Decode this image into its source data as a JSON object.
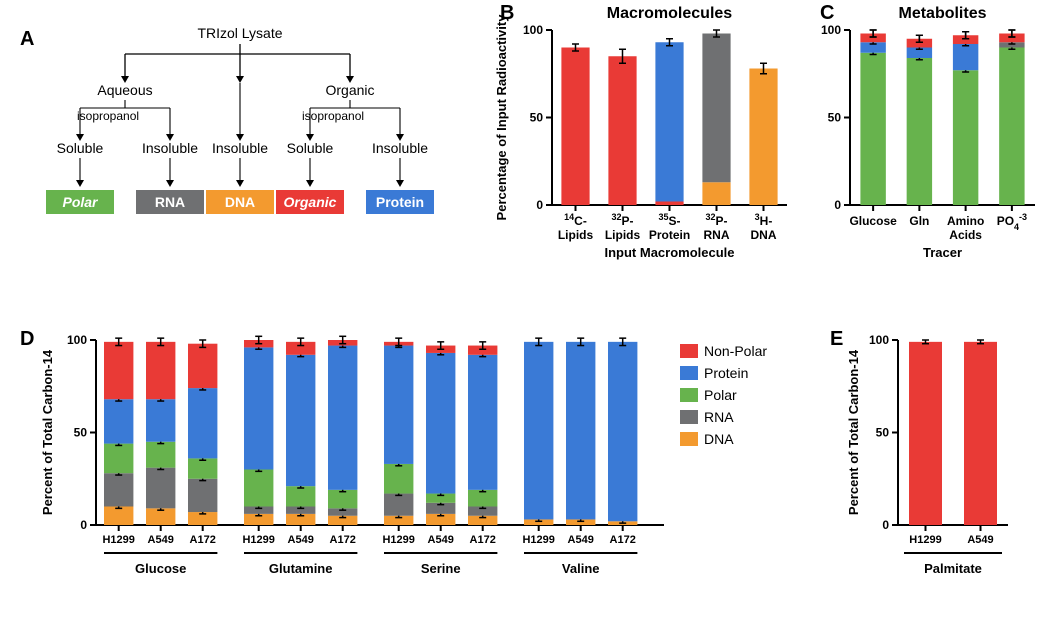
{
  "colors": {
    "nonpolar": "#e93a36",
    "protein": "#3a7ad6",
    "polar": "#67b34d",
    "rna": "#6f7072",
    "dna": "#f39a2f",
    "axis": "#000000",
    "text": "#000000",
    "err": "#000000"
  },
  "panelA": {
    "label": "A",
    "root": "TRIzol Lysate",
    "mid": [
      {
        "label": "Aqueous"
      },
      {
        "label": "Organic"
      }
    ],
    "smallL": "isopropanol",
    "smallR": "isopropanol",
    "leaves": [
      {
        "label": "Soluble"
      },
      {
        "label": "Insoluble"
      },
      {
        "label": "Insoluble"
      },
      {
        "label": "Soluble"
      },
      {
        "label": "Insoluble"
      }
    ],
    "boxes": [
      {
        "label": "Polar",
        "color": "polar",
        "italic": true
      },
      {
        "label": "RNA",
        "color": "rna",
        "italic": false
      },
      {
        "label": "DNA",
        "color": "dna",
        "italic": false
      },
      {
        "label": "Organic",
        "color": "nonpolar",
        "italic": true
      },
      {
        "label": "Protein",
        "color": "protein",
        "italic": false
      }
    ]
  },
  "panelB": {
    "label": "B",
    "title": "Macromolecules",
    "ytitle": "Percentage of Input Radioactivity",
    "xtitle": "Input Macromolecule",
    "ylim": [
      0,
      100
    ],
    "yticks": [
      0,
      50,
      100
    ],
    "bar_width": 0.6,
    "bars": [
      {
        "xlab": "<tspan font-size='9' baseline-shift='super'>14</tspan>C-\nLipids",
        "stack": [
          {
            "c": "nonpolar",
            "v": 90
          }
        ],
        "err": 2
      },
      {
        "xlab": "<tspan font-size='9' baseline-shift='super'>32</tspan>P-\nLipids",
        "stack": [
          {
            "c": "nonpolar",
            "v": 85
          }
        ],
        "err": 4
      },
      {
        "xlab": "<tspan font-size='9' baseline-shift='super'>35</tspan>S-\nProtein",
        "stack": [
          {
            "c": "nonpolar",
            "v": 2
          },
          {
            "c": "protein",
            "v": 91
          }
        ],
        "err": 2
      },
      {
        "xlab": "<tspan font-size='9' baseline-shift='super'>32</tspan>P-\nRNA",
        "stack": [
          {
            "c": "dna",
            "v": 13
          },
          {
            "c": "rna",
            "v": 85
          }
        ],
        "err": 2
      },
      {
        "xlab": "<tspan font-size='9' baseline-shift='super'>3</tspan>H-\nDNA",
        "stack": [
          {
            "c": "dna",
            "v": 78
          }
        ],
        "err": 3
      }
    ]
  },
  "panelC": {
    "label": "C",
    "title": "Metabolites",
    "xtitle": "Tracer",
    "ylim": [
      0,
      100
    ],
    "yticks": [
      0,
      50,
      100
    ],
    "bar_width": 0.55,
    "bars": [
      {
        "xlab": "Glucose",
        "stack": [
          {
            "c": "polar",
            "v": 87
          },
          {
            "c": "protein",
            "v": 6
          },
          {
            "c": "nonpolar",
            "v": 5
          }
        ],
        "err": 2
      },
      {
        "xlab": "Gln",
        "stack": [
          {
            "c": "polar",
            "v": 84
          },
          {
            "c": "protein",
            "v": 6
          },
          {
            "c": "nonpolar",
            "v": 5
          }
        ],
        "err": 2
      },
      {
        "xlab": "Amino\nAcids",
        "stack": [
          {
            "c": "polar",
            "v": 77
          },
          {
            "c": "protein",
            "v": 15
          },
          {
            "c": "nonpolar",
            "v": 5
          }
        ],
        "err": 2
      },
      {
        "xlab": "PO<tspan font-size='9' baseline-shift='sub'>4</tspan><tspan font-size='9' baseline-shift='super'>-3</tspan>",
        "stack": [
          {
            "c": "polar",
            "v": 90
          },
          {
            "c": "rna",
            "v": 3
          },
          {
            "c": "nonpolar",
            "v": 5
          }
        ],
        "err": 2
      }
    ]
  },
  "legendD": {
    "items": [
      {
        "c": "nonpolar",
        "label": "Non-Polar"
      },
      {
        "c": "protein",
        "label": "Protein"
      },
      {
        "c": "polar",
        "label": "Polar"
      },
      {
        "c": "rna",
        "label": "RNA"
      },
      {
        "c": "dna",
        "label": "DNA"
      }
    ]
  },
  "panelD": {
    "label": "D",
    "ytitle": "Percent of Total Carbon-14",
    "ylim": [
      0,
      100
    ],
    "yticks": [
      0,
      50,
      100
    ],
    "bar_width": 0.7,
    "groups": [
      {
        "group": "Glucose",
        "cells": [
          "H1299",
          "A549",
          "A172"
        ],
        "stacks": [
          [
            {
              "c": "dna",
              "v": 10
            },
            {
              "c": "rna",
              "v": 18
            },
            {
              "c": "polar",
              "v": 16
            },
            {
              "c": "protein",
              "v": 24
            },
            {
              "c": "nonpolar",
              "v": 31
            }
          ],
          [
            {
              "c": "dna",
              "v": 9
            },
            {
              "c": "rna",
              "v": 22
            },
            {
              "c": "polar",
              "v": 14
            },
            {
              "c": "protein",
              "v": 23
            },
            {
              "c": "nonpolar",
              "v": 31
            }
          ],
          [
            {
              "c": "dna",
              "v": 7
            },
            {
              "c": "rna",
              "v": 18
            },
            {
              "c": "polar",
              "v": 11
            },
            {
              "c": "protein",
              "v": 38
            },
            {
              "c": "nonpolar",
              "v": 24
            }
          ]
        ]
      },
      {
        "group": "Glutamine",
        "cells": [
          "H1299",
          "A549",
          "A172"
        ],
        "stacks": [
          [
            {
              "c": "dna",
              "v": 6
            },
            {
              "c": "rna",
              "v": 4
            },
            {
              "c": "polar",
              "v": 20
            },
            {
              "c": "protein",
              "v": 66
            },
            {
              "c": "nonpolar",
              "v": 4
            }
          ],
          [
            {
              "c": "dna",
              "v": 6
            },
            {
              "c": "rna",
              "v": 4
            },
            {
              "c": "polar",
              "v": 11
            },
            {
              "c": "protein",
              "v": 71
            },
            {
              "c": "nonpolar",
              "v": 7
            }
          ],
          [
            {
              "c": "dna",
              "v": 5
            },
            {
              "c": "rna",
              "v": 4
            },
            {
              "c": "polar",
              "v": 10
            },
            {
              "c": "protein",
              "v": 78
            },
            {
              "c": "nonpolar",
              "v": 3
            }
          ]
        ]
      },
      {
        "group": "Serine",
        "cells": [
          "H1299",
          "A549",
          "A172"
        ],
        "stacks": [
          [
            {
              "c": "dna",
              "v": 5
            },
            {
              "c": "rna",
              "v": 12
            },
            {
              "c": "polar",
              "v": 16
            },
            {
              "c": "protein",
              "v": 64
            },
            {
              "c": "nonpolar",
              "v": 2
            }
          ],
          [
            {
              "c": "dna",
              "v": 6
            },
            {
              "c": "rna",
              "v": 6
            },
            {
              "c": "polar",
              "v": 5
            },
            {
              "c": "protein",
              "v": 76
            },
            {
              "c": "nonpolar",
              "v": 4
            }
          ],
          [
            {
              "c": "dna",
              "v": 5
            },
            {
              "c": "rna",
              "v": 5
            },
            {
              "c": "polar",
              "v": 9
            },
            {
              "c": "protein",
              "v": 73
            },
            {
              "c": "nonpolar",
              "v": 5
            }
          ]
        ]
      },
      {
        "group": "Valine",
        "cells": [
          "H1299",
          "A549",
          "A172"
        ],
        "stacks": [
          [
            {
              "c": "dna",
              "v": 3
            },
            {
              "c": "protein",
              "v": 96
            }
          ],
          [
            {
              "c": "dna",
              "v": 3
            },
            {
              "c": "protein",
              "v": 96
            }
          ],
          [
            {
              "c": "dna",
              "v": 2
            },
            {
              "c": "protein",
              "v": 97
            }
          ]
        ]
      }
    ],
    "err": 2
  },
  "panelE": {
    "label": "E",
    "ytitle": "Percent of Total Carbon-14",
    "ylim": [
      0,
      100
    ],
    "yticks": [
      0,
      50,
      100
    ],
    "bar_width": 0.6,
    "group": "Palmitate",
    "bars": [
      {
        "xlab": "H1299",
        "stack": [
          {
            "c": "nonpolar",
            "v": 99
          }
        ]
      },
      {
        "xlab": "A549",
        "stack": [
          {
            "c": "nonpolar",
            "v": 99
          }
        ]
      }
    ]
  }
}
